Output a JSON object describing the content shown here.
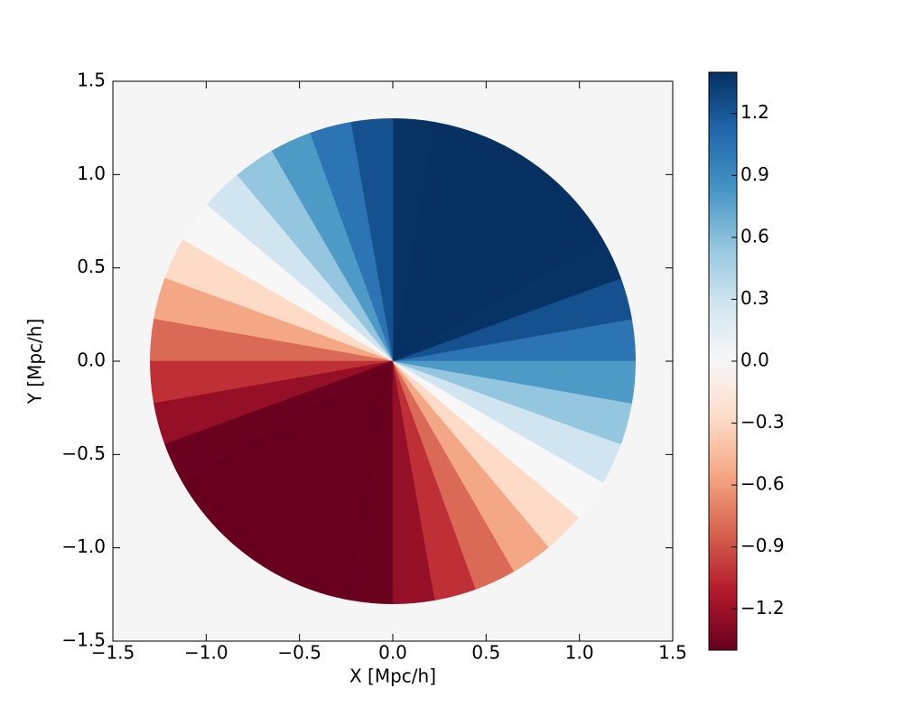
{
  "chart_data": {
    "type": "polar_heatmap",
    "xlabel": "X [Mpc/h]",
    "ylabel": "Y [Mpc/h]",
    "xlim": [
      -1.5,
      1.5
    ],
    "ylim": [
      -1.5,
      1.5
    ],
    "xticks": [
      {
        "value": -1.5,
        "label": "−1.5"
      },
      {
        "value": -1.0,
        "label": "−1.0"
      },
      {
        "value": -0.5,
        "label": "−0.5"
      },
      {
        "value": 0,
        "label": "0.0"
      },
      0.5,
      {
        "value": 1.0,
        "label": "1.0"
      },
      1.5
    ],
    "yticks": [
      {
        "value": -1.5,
        "label": "−1.5"
      },
      {
        "value": -1.0,
        "label": "−1.0"
      },
      {
        "value": -0.5,
        "label": "−0.5"
      },
      {
        "value": 0,
        "label": "0.0"
      },
      0.5,
      {
        "value": 1.0,
        "label": "1.0"
      },
      1.5
    ],
    "facecolor": "#f5f5f5",
    "radius": 1.3,
    "theta_bins": [
      0,
      10,
      20,
      30,
      40,
      50,
      60,
      70,
      80,
      90,
      100,
      110,
      120,
      130,
      140,
      150,
      160,
      170,
      180,
      190,
      200,
      210,
      220,
      230,
      240,
      250,
      260,
      270,
      280,
      290,
      300,
      310,
      320,
      330,
      340,
      350,
      360
    ],
    "values": [
      1.03,
      1.23,
      1.39,
      1.4,
      1.4,
      1.4,
      1.4,
      1.4,
      1.39,
      1.23,
      1.03,
      0.8,
      0.55,
      0.28,
      0.0,
      -0.28,
      -0.55,
      -0.8,
      -1.03,
      -1.23,
      -1.39,
      -1.4,
      -1.4,
      -1.4,
      -1.4,
      -1.4,
      -1.39,
      -1.23,
      -1.03,
      -0.8,
      -0.55,
      -0.28,
      0.0,
      0.28,
      0.55,
      0.8
    ],
    "clim": [
      -1.4,
      1.4
    ],
    "colormap": [
      "#67001f",
      "#b2182b",
      "#d6604d",
      "#f4a582",
      "#fddbc7",
      "#f7f7f7",
      "#d1e5f0",
      "#92c5de",
      "#4393c3",
      "#2166ac",
      "#053061"
    ],
    "colorbar_ticks": [
      {
        "value": -1.2,
        "label": "−1.2"
      },
      {
        "value": -0.9,
        "label": "−0.9"
      },
      {
        "value": -0.6,
        "label": "−0.6"
      },
      {
        "value": -0.3,
        "label": "−0.3"
      },
      {
        "value": 0,
        "label": "0.0"
      },
      0.3,
      0.6,
      0.9,
      1.2
    ]
  }
}
